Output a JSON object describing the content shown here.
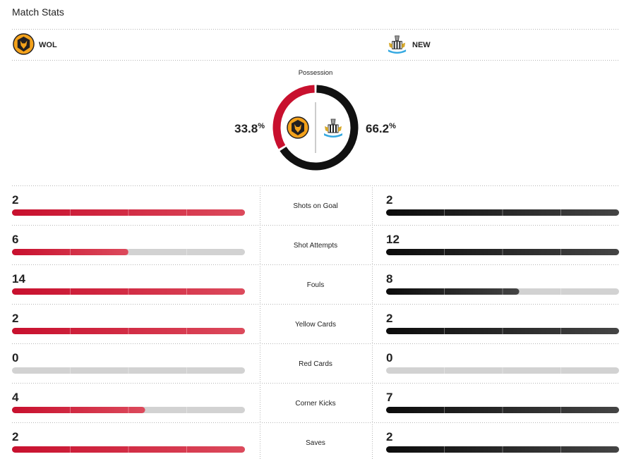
{
  "header": {
    "title": "Match Stats"
  },
  "teams": {
    "home": {
      "abbr": "WOL"
    },
    "away": {
      "abbr": "NEW"
    }
  },
  "possession": {
    "label": "Possession",
    "home": 33.8,
    "away": 66.2,
    "unit": "%"
  },
  "stats": [
    {
      "label": "Shots on Goal",
      "home": 2,
      "away": 2
    },
    {
      "label": "Shot Attempts",
      "home": 6,
      "away": 12
    },
    {
      "label": "Fouls",
      "home": 14,
      "away": 8
    },
    {
      "label": "Yellow Cards",
      "home": 2,
      "away": 2
    },
    {
      "label": "Red Cards",
      "home": 0,
      "away": 0
    },
    {
      "label": "Corner Kicks",
      "home": 4,
      "away": 7
    },
    {
      "label": "Saves",
      "home": 2,
      "away": 2
    }
  ]
}
